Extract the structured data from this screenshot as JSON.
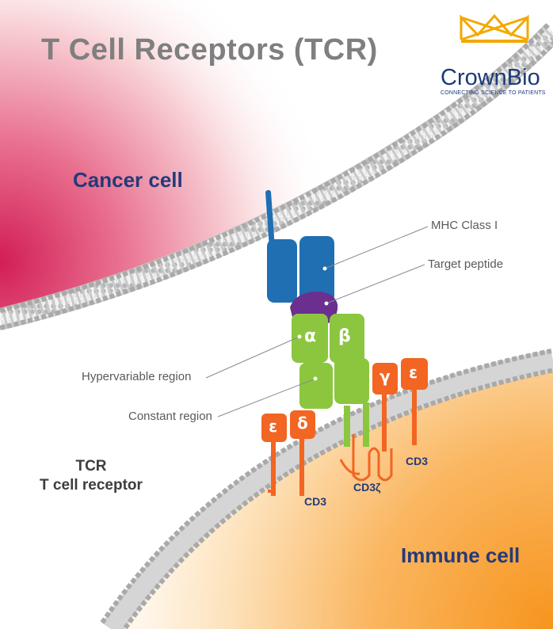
{
  "title": "T Cell Receptors (TCR)",
  "logo": {
    "name": "CrownBio",
    "tagline": "CONNECTING SCIENCE TO PATIENTS"
  },
  "labels": {
    "cancer_cell": "Cancer cell",
    "immune_cell": "Immune cell",
    "tcr_line1": "TCR",
    "tcr_line2": "T cell receptor",
    "mhc": "MHC Class I",
    "target_peptide": "Target peptide",
    "hypervariable": "Hypervariable region",
    "constant": "Constant region",
    "cd3_left": "CD3",
    "cd3_right": "CD3",
    "cd3_zeta": "CD3ζ",
    "alpha": "α",
    "beta": "β",
    "epsilon_left": "ε",
    "delta": "δ",
    "gamma": "γ",
    "epsilon_right": "ε"
  },
  "colors": {
    "title": "#7f7f7f",
    "cell_label": "#243a7a",
    "annotation": "#5a5a5a",
    "mhc_blue": "#1f6fb2",
    "peptide_purple": "#6b2f8f",
    "tcr_green": "#8cc63f",
    "cd3_orange": "#f26522",
    "cancer_pink": "#d8285a",
    "immune_orange": "#f7941d",
    "logo_gold": "#f2a900",
    "logo_navy": "#1b3a7a"
  }
}
